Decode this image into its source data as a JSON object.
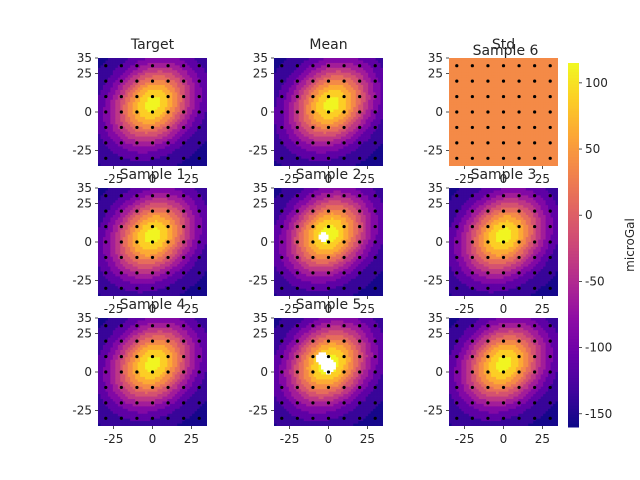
{
  "figure": {
    "colormap": "plasma",
    "colorbar": {
      "label": "microGal",
      "vmin": -160,
      "vmax": 115,
      "ticks": [
        100,
        50,
        0,
        -50,
        -100,
        -150
      ]
    }
  },
  "chart_data": [
    {
      "type": "heatmap",
      "title": "Target",
      "xlim": [
        -35,
        35
      ],
      "ylim": [
        -35,
        35
      ],
      "xticks": [
        -25,
        0,
        25
      ],
      "yticks": [
        35,
        25,
        0,
        -25
      ],
      "uniform": false,
      "peak": 110,
      "peak_center": [
        0,
        5
      ],
      "holes": [],
      "points": "grid-7x7"
    },
    {
      "type": "heatmap",
      "title": "Mean",
      "xlim": [
        -35,
        35
      ],
      "ylim": [
        -35,
        35
      ],
      "xticks": [
        -25,
        0,
        25
      ],
      "yticks": [
        35,
        25,
        0,
        -25
      ],
      "uniform": false,
      "peak": 110,
      "peak_center": [
        2,
        5
      ],
      "holes": [],
      "points": "grid-7x7"
    },
    {
      "type": "heatmap",
      "title": "Std",
      "subtitle": "Sample 6",
      "xlim": [
        -35,
        35
      ],
      "ylim": [
        -35,
        35
      ],
      "xticks": [
        -25,
        0,
        25
      ],
      "yticks": [
        35,
        25,
        0,
        -25
      ],
      "uniform": true,
      "uniform_value": 30,
      "holes": [],
      "points": "grid-7x7"
    },
    {
      "type": "heatmap",
      "title": "Sample 1",
      "xlim": [
        -35,
        35
      ],
      "ylim": [
        -35,
        35
      ],
      "xticks": [
        -25,
        0,
        25
      ],
      "yticks": [
        35,
        25,
        0,
        -25
      ],
      "uniform": false,
      "peak": 110,
      "peak_center": [
        0,
        4
      ],
      "holes": [],
      "points": "grid-7x7"
    },
    {
      "type": "heatmap",
      "title": "Sample 2",
      "xlim": [
        -35,
        35
      ],
      "ylim": [
        -35,
        35
      ],
      "xticks": [
        -25,
        0,
        25
      ],
      "yticks": [
        35,
        25,
        0,
        -25
      ],
      "uniform": false,
      "peak": 115,
      "peak_center": [
        0,
        5
      ],
      "holes": [
        {
          "x": -3,
          "y": 3,
          "r": 3
        }
      ],
      "points": "grid-7x7"
    },
    {
      "type": "heatmap",
      "title": "Sample 3",
      "xlim": [
        -35,
        35
      ],
      "ylim": [
        -35,
        35
      ],
      "xticks": [
        -25,
        0,
        25
      ],
      "yticks": [
        35,
        25,
        0,
        -25
      ],
      "uniform": false,
      "peak": 110,
      "peak_center": [
        0,
        4
      ],
      "holes": [],
      "points": "grid-7x7"
    },
    {
      "type": "heatmap",
      "title": "Sample 4",
      "xlim": [
        -35,
        35
      ],
      "ylim": [
        -35,
        35
      ],
      "xticks": [
        -25,
        0,
        25
      ],
      "yticks": [
        35,
        25,
        0,
        -25
      ],
      "uniform": false,
      "peak": 110,
      "peak_center": [
        0,
        5
      ],
      "holes": [],
      "points": "grid-7x7"
    },
    {
      "type": "heatmap",
      "title": "Sample 5",
      "xlim": [
        -35,
        35
      ],
      "ylim": [
        -35,
        35
      ],
      "xticks": [
        -25,
        0,
        25
      ],
      "yticks": [
        35,
        25,
        0,
        -25
      ],
      "uniform": false,
      "peak": 118,
      "peak_center": [
        0,
        5
      ],
      "holes": [
        {
          "x": -4,
          "y": 9,
          "r": 4
        },
        {
          "x": 0,
          "y": 4,
          "r": 5
        }
      ],
      "points": "grid-7x7"
    },
    {
      "type": "heatmap",
      "title": "",
      "xlim": [
        -35,
        35
      ],
      "ylim": [
        -35,
        35
      ],
      "xticks": [
        -25,
        0,
        25
      ],
      "yticks": [
        35,
        25,
        0,
        -25
      ],
      "uniform": false,
      "peak": 110,
      "peak_center": [
        0,
        5
      ],
      "holes": [],
      "points": "grid-7x7"
    }
  ]
}
